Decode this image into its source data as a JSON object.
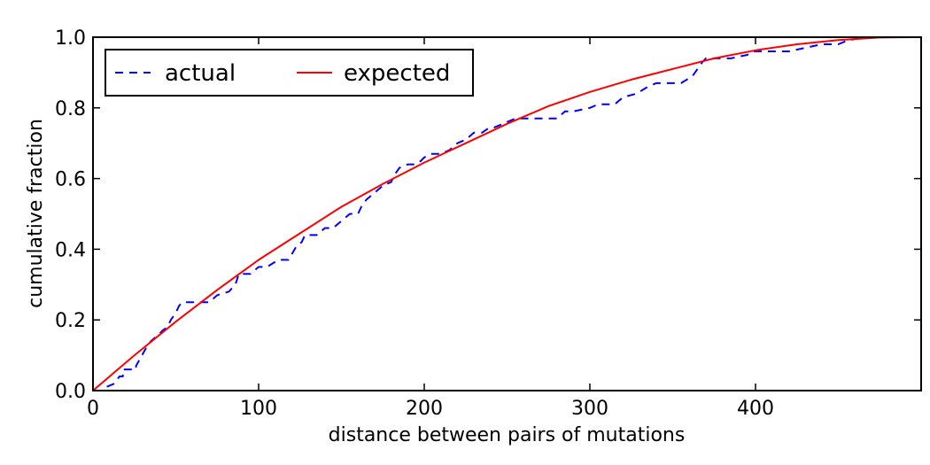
{
  "chart_data": {
    "type": "line",
    "xlabel": "distance between pairs of mutations",
    "ylabel": "cumulative fraction",
    "xlim": [
      0,
      500
    ],
    "ylim": [
      0.0,
      1.0
    ],
    "x_ticks": [
      0,
      100,
      200,
      300,
      400
    ],
    "x_tick_labels": [
      "0",
      "100",
      "200",
      "300",
      "400"
    ],
    "y_ticks": [
      0.0,
      0.2,
      0.4,
      0.6,
      0.8,
      1.0
    ],
    "y_tick_labels": [
      "0.0",
      "0.2",
      "0.4",
      "0.6",
      "0.8",
      "1.0"
    ],
    "grid": false,
    "legend": {
      "placement": "top-left",
      "columns": 2
    },
    "series": [
      {
        "name": "actual",
        "style": "dashed",
        "color": "#0000ff",
        "x": [
          2,
          8,
          8,
          13,
          16,
          18,
          18,
          23,
          26,
          26,
          32,
          35,
          40,
          42,
          45,
          47,
          50,
          52,
          54,
          60,
          70,
          75,
          82,
          86,
          88,
          95,
          100,
          105,
          112,
          118,
          123,
          126,
          128,
          135,
          140,
          145,
          150,
          155,
          160,
          162,
          165,
          170,
          175,
          180,
          182,
          185,
          190,
          195,
          198,
          200,
          204,
          210,
          215,
          220,
          225,
          230,
          235,
          238,
          240,
          245,
          250,
          255,
          260,
          270,
          280,
          285,
          290,
          300,
          305,
          310,
          315,
          320,
          328,
          335,
          340,
          348,
          355,
          362,
          365,
          368,
          370,
          375,
          385,
          395,
          398,
          410,
          420,
          430,
          440,
          445,
          450,
          455,
          465,
          480,
          495
        ],
        "y": [
          0.0,
          0.0,
          0.01,
          0.02,
          0.04,
          0.04,
          0.06,
          0.06,
          0.06,
          0.07,
          0.12,
          0.14,
          0.16,
          0.17,
          0.18,
          0.2,
          0.22,
          0.24,
          0.25,
          0.25,
          0.25,
          0.27,
          0.28,
          0.3,
          0.33,
          0.33,
          0.35,
          0.35,
          0.37,
          0.37,
          0.41,
          0.42,
          0.44,
          0.44,
          0.46,
          0.46,
          0.48,
          0.5,
          0.5,
          0.52,
          0.54,
          0.56,
          0.58,
          0.59,
          0.61,
          0.63,
          0.64,
          0.64,
          0.65,
          0.66,
          0.67,
          0.67,
          0.68,
          0.7,
          0.71,
          0.73,
          0.73,
          0.74,
          0.74,
          0.75,
          0.76,
          0.77,
          0.77,
          0.77,
          0.77,
          0.79,
          0.79,
          0.8,
          0.81,
          0.81,
          0.81,
          0.83,
          0.84,
          0.86,
          0.87,
          0.87,
          0.87,
          0.89,
          0.91,
          0.93,
          0.94,
          0.94,
          0.94,
          0.95,
          0.96,
          0.96,
          0.96,
          0.97,
          0.98,
          0.98,
          0.98,
          0.99,
          1.0,
          1.0,
          1.0
        ]
      },
      {
        "name": "expected",
        "style": "solid",
        "color": "#ff0000",
        "x": [
          0,
          25,
          50,
          75,
          100,
          125,
          150,
          175,
          200,
          225,
          250,
          275,
          300,
          325,
          350,
          375,
          400,
          425,
          450,
          475,
          495
        ],
        "y": [
          0.0,
          0.1,
          0.195,
          0.285,
          0.37,
          0.445,
          0.52,
          0.585,
          0.645,
          0.7,
          0.755,
          0.805,
          0.845,
          0.88,
          0.91,
          0.94,
          0.963,
          0.98,
          0.992,
          0.999,
          1.0
        ]
      }
    ]
  }
}
